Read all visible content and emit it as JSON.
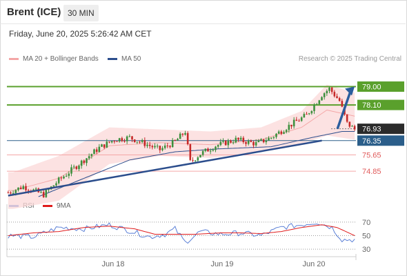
{
  "header": {
    "title": "Brent (ICE)",
    "timeframe": "30 MIN",
    "datetime": "Friday, June 20, 2025 5:26:42 AM CET"
  },
  "legend": {
    "bollinger_label": "MA 20 + Bollinger Bands",
    "ma50_label": "MA 50",
    "credit": "Research © 2025 Trading Central",
    "rsi_label": "RSI",
    "rsi_ma_label": "9MA"
  },
  "colors": {
    "bollinger": "#f4a6a6",
    "ma50": "#2b4d8c",
    "resistance": "#5aa02c",
    "support": "#f4a6a6",
    "pivot": "#2b5e8a",
    "current": "#333333",
    "rsi": "#5a7fd6",
    "rsi_ma": "#e01b1b",
    "candle_up": "#3d8f3d",
    "candle_down": "#c62828"
  },
  "chart_data": {
    "type": "candlestick",
    "x_ticks": [
      "Jun 18",
      "Jun 19",
      "Jun 20"
    ],
    "price_levels": [
      {
        "label": "79.00",
        "value": 79.0,
        "kind": "resistance"
      },
      {
        "label": "78.10",
        "value": 78.1,
        "kind": "resistance"
      },
      {
        "label": "76.93",
        "value": 76.93,
        "kind": "current"
      },
      {
        "label": "76.35",
        "value": 76.35,
        "kind": "pivot"
      },
      {
        "label": "75.65",
        "value": 75.65,
        "kind": "support"
      },
      {
        "label": "74.85",
        "value": 74.85,
        "kind": "support"
      }
    ],
    "price_range": [
      73.6,
      80.0
    ],
    "close_anchors": [
      [
        0,
        73.8
      ],
      [
        6,
        74.1
      ],
      [
        14,
        73.7
      ],
      [
        20,
        74.4
      ],
      [
        28,
        75.2
      ],
      [
        36,
        76.0
      ],
      [
        42,
        76.4
      ],
      [
        48,
        76.5
      ],
      [
        54,
        76.2
      ],
      [
        60,
        75.9
      ],
      [
        66,
        76.3
      ],
      [
        70,
        76.8
      ],
      [
        72,
        75.3
      ],
      [
        76,
        75.7
      ],
      [
        82,
        76.1
      ],
      [
        90,
        76.4
      ],
      [
        98,
        76.2
      ],
      [
        104,
        76.5
      ],
      [
        110,
        77.0
      ],
      [
        118,
        77.6
      ],
      [
        124,
        78.6
      ],
      [
        127,
        78.9
      ],
      [
        131,
        78.3
      ],
      [
        134,
        77.2
      ],
      [
        137,
        76.9
      ]
    ],
    "candles_count": 138,
    "ma50_anchors": [
      [
        12,
        73.6
      ],
      [
        30,
        74.5
      ],
      [
        48,
        75.4
      ],
      [
        66,
        75.8
      ],
      [
        84,
        75.95
      ],
      [
        104,
        76.05
      ],
      [
        120,
        76.5
      ],
      [
        132,
        76.8
      ]
    ],
    "bollinger_anchors": [
      [
        2,
        73.0,
        74.8
      ],
      [
        20,
        73.4,
        75.6
      ],
      [
        40,
        75.2,
        77.0
      ],
      [
        60,
        75.6,
        76.9
      ],
      [
        80,
        75.5,
        76.8
      ],
      [
        100,
        75.8,
        77.0
      ],
      [
        116,
        76.2,
        77.8
      ],
      [
        126,
        76.6,
        79.1
      ],
      [
        137,
        76.4,
        78.7
      ]
    ],
    "trendline": {
      "from": [
        0,
        73.65
      ],
      "to": [
        124,
        76.35
      ]
    },
    "projection": {
      "from": [
        128,
        76.93
      ],
      "to_level": 79.0
    },
    "rsi": {
      "ticks": [
        70,
        50,
        30
      ],
      "range": [
        25,
        80
      ],
      "rsi_anchors": [
        [
          0,
          50
        ],
        [
          10,
          48
        ],
        [
          20,
          62
        ],
        [
          30,
          60
        ],
        [
          40,
          66
        ],
        [
          50,
          55
        ],
        [
          56,
          48
        ],
        [
          62,
          52
        ],
        [
          66,
          60
        ],
        [
          70,
          40
        ],
        [
          76,
          56
        ],
        [
          84,
          52
        ],
        [
          92,
          54
        ],
        [
          100,
          50
        ],
        [
          108,
          62
        ],
        [
          116,
          66
        ],
        [
          122,
          70
        ],
        [
          128,
          62
        ],
        [
          132,
          44
        ],
        [
          137,
          44
        ]
      ],
      "ma_anchors": [
        [
          0,
          50
        ],
        [
          10,
          54
        ],
        [
          20,
          56
        ],
        [
          30,
          62
        ],
        [
          40,
          64
        ],
        [
          50,
          60
        ],
        [
          58,
          52
        ],
        [
          66,
          52
        ],
        [
          74,
          52
        ],
        [
          84,
          54
        ],
        [
          92,
          54
        ],
        [
          100,
          53
        ],
        [
          108,
          56
        ],
        [
          116,
          62
        ],
        [
          124,
          66
        ],
        [
          130,
          62
        ],
        [
          137,
          50
        ]
      ]
    }
  }
}
